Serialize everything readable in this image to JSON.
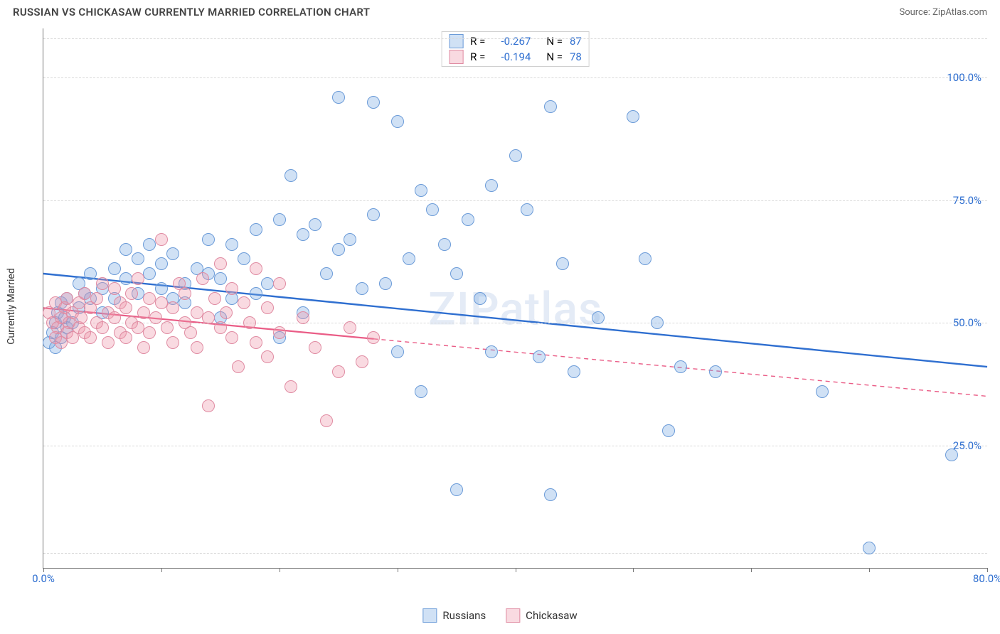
{
  "header": {
    "title": "RUSSIAN VS CHICKASAW CURRENTLY MARRIED CORRELATION CHART",
    "source": "Source: ZipAtlas.com"
  },
  "chart": {
    "type": "scatter",
    "watermark": "ZIPatlas",
    "ylabel": "Currently Married",
    "xlim": [
      0,
      80
    ],
    "ylim": [
      0,
      110
    ],
    "xtick_positions": [
      0,
      10,
      20,
      30,
      40,
      50,
      60,
      70,
      80
    ],
    "xtick_labels": {
      "0": "0.0%",
      "80": "80.0%"
    },
    "ytick_positions": [
      25,
      50,
      75,
      100
    ],
    "ytick_labels": {
      "25": "25.0%",
      "50": "50.0%",
      "75": "75.0%",
      "100": "100.0%"
    },
    "ytick_color": "#2f6fd0",
    "xtick_color": "#2f6fd0",
    "grid_positions": [
      3,
      25,
      50,
      75,
      100,
      108
    ],
    "marker_radius": 9,
    "series": {
      "russians": {
        "label": "Russians",
        "fill": "rgba(121,168,225,0.35)",
        "stroke": "#6b9bd8",
        "trend_color": "#2f6fd0",
        "trend_width": 2.4,
        "trend_dash_color": "#2f6fd0",
        "trend": {
          "x1": 0,
          "y1": 60,
          "x2": 80,
          "y2": 41
        },
        "R": "-0.267",
        "N": "87",
        "points": [
          [
            0.5,
            46
          ],
          [
            0.8,
            48
          ],
          [
            1,
            50
          ],
          [
            1,
            45
          ],
          [
            1.2,
            52
          ],
          [
            1.5,
            54
          ],
          [
            1.5,
            47
          ],
          [
            1.8,
            51
          ],
          [
            2,
            49
          ],
          [
            2,
            55
          ],
          [
            2.5,
            50
          ],
          [
            3,
            53
          ],
          [
            3,
            58
          ],
          [
            3.5,
            56
          ],
          [
            4,
            55
          ],
          [
            4,
            60
          ],
          [
            5,
            57
          ],
          [
            5,
            52
          ],
          [
            6,
            61
          ],
          [
            6,
            55
          ],
          [
            7,
            59
          ],
          [
            7,
            65
          ],
          [
            8,
            63
          ],
          [
            8,
            56
          ],
          [
            9,
            60
          ],
          [
            9,
            66
          ],
          [
            10,
            62
          ],
          [
            10,
            57
          ],
          [
            11,
            55
          ],
          [
            11,
            64
          ],
          [
            12,
            58
          ],
          [
            12,
            54
          ],
          [
            13,
            61
          ],
          [
            14,
            60
          ],
          [
            14,
            67
          ],
          [
            15,
            51
          ],
          [
            15,
            59
          ],
          [
            16,
            66
          ],
          [
            16,
            55
          ],
          [
            17,
            63
          ],
          [
            18,
            69
          ],
          [
            18,
            56
          ],
          [
            19,
            58
          ],
          [
            20,
            71
          ],
          [
            20,
            47
          ],
          [
            21,
            80
          ],
          [
            22,
            68
          ],
          [
            22,
            52
          ],
          [
            23,
            70
          ],
          [
            24,
            60
          ],
          [
            25,
            96
          ],
          [
            25,
            65
          ],
          [
            26,
            67
          ],
          [
            27,
            57
          ],
          [
            28,
            95
          ],
          [
            28,
            72
          ],
          [
            29,
            58
          ],
          [
            30,
            91
          ],
          [
            30,
            44
          ],
          [
            31,
            63
          ],
          [
            32,
            77
          ],
          [
            32,
            36
          ],
          [
            33,
            73
          ],
          [
            34,
            66
          ],
          [
            35,
            60
          ],
          [
            35,
            16
          ],
          [
            36,
            71
          ],
          [
            37,
            55
          ],
          [
            38,
            78
          ],
          [
            38,
            44
          ],
          [
            40,
            84
          ],
          [
            41,
            73
          ],
          [
            42,
            43
          ],
          [
            43,
            94
          ],
          [
            43,
            15
          ],
          [
            44,
            62
          ],
          [
            45,
            40
          ],
          [
            47,
            51
          ],
          [
            50,
            92
          ],
          [
            51,
            63
          ],
          [
            52,
            50
          ],
          [
            53,
            28
          ],
          [
            54,
            41
          ],
          [
            57,
            40
          ],
          [
            66,
            36
          ],
          [
            70,
            4
          ],
          [
            77,
            23
          ]
        ]
      },
      "chickasaw": {
        "label": "Chickasaw",
        "fill": "rgba(238,148,168,0.35)",
        "stroke": "#e08ba2",
        "trend_color": "#ea5c86",
        "trend_width": 2.2,
        "trend_dash": "6,5",
        "trend": {
          "x1": 0,
          "y1": 53,
          "x2": 80,
          "y2": 35
        },
        "solid_until_x": 28,
        "R": "-0.194",
        "N": "78",
        "points": [
          [
            0.5,
            52
          ],
          [
            0.8,
            50
          ],
          [
            1,
            47
          ],
          [
            1,
            54
          ],
          [
            1.2,
            49
          ],
          [
            1.5,
            51
          ],
          [
            1.5,
            46
          ],
          [
            1.8,
            53
          ],
          [
            2,
            48
          ],
          [
            2,
            55
          ],
          [
            2.2,
            50
          ],
          [
            2.5,
            52
          ],
          [
            2.5,
            47
          ],
          [
            3,
            54
          ],
          [
            3,
            49
          ],
          [
            3.2,
            51
          ],
          [
            3.5,
            48
          ],
          [
            3.5,
            56
          ],
          [
            4,
            53
          ],
          [
            4,
            47
          ],
          [
            4.5,
            50
          ],
          [
            4.5,
            55
          ],
          [
            5,
            49
          ],
          [
            5,
            58
          ],
          [
            5.5,
            52
          ],
          [
            5.5,
            46
          ],
          [
            6,
            51
          ],
          [
            6,
            57
          ],
          [
            6.5,
            48
          ],
          [
            6.5,
            54
          ],
          [
            7,
            53
          ],
          [
            7,
            47
          ],
          [
            7.5,
            56
          ],
          [
            7.5,
            50
          ],
          [
            8,
            49
          ],
          [
            8,
            59
          ],
          [
            8.5,
            52
          ],
          [
            8.5,
            45
          ],
          [
            9,
            55
          ],
          [
            9,
            48
          ],
          [
            9.5,
            51
          ],
          [
            10,
            54
          ],
          [
            10,
            67
          ],
          [
            10.5,
            49
          ],
          [
            11,
            53
          ],
          [
            11,
            46
          ],
          [
            11.5,
            58
          ],
          [
            12,
            50
          ],
          [
            12,
            56
          ],
          [
            12.5,
            48
          ],
          [
            13,
            52
          ],
          [
            13,
            45
          ],
          [
            13.5,
            59
          ],
          [
            14,
            51
          ],
          [
            14,
            33
          ],
          [
            14.5,
            55
          ],
          [
            15,
            49
          ],
          [
            15,
            62
          ],
          [
            15.5,
            52
          ],
          [
            16,
            47
          ],
          [
            16,
            57
          ],
          [
            16.5,
            41
          ],
          [
            17,
            54
          ],
          [
            17.5,
            50
          ],
          [
            18,
            46
          ],
          [
            18,
            61
          ],
          [
            19,
            43
          ],
          [
            19,
            53
          ],
          [
            20,
            48
          ],
          [
            20,
            58
          ],
          [
            21,
            37
          ],
          [
            22,
            51
          ],
          [
            23,
            45
          ],
          [
            24,
            30
          ],
          [
            25,
            40
          ],
          [
            26,
            49
          ],
          [
            27,
            42
          ],
          [
            28,
            47
          ]
        ]
      }
    },
    "legend_top": {
      "label_R": "R =",
      "label_N": "N =",
      "value_color": "#2f6fd0"
    },
    "legend_bottom_order": [
      "russians",
      "chickasaw"
    ]
  }
}
